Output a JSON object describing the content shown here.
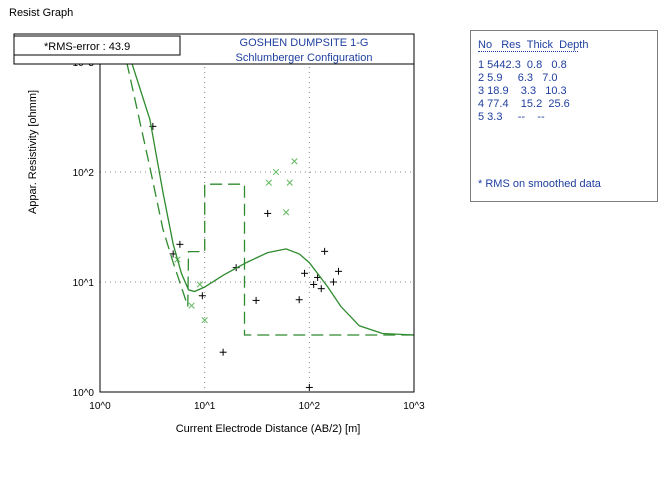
{
  "window": {
    "title": "Resist Graph"
  },
  "rms_label": "*RMS-error : 43.9",
  "layer_table": {
    "headers": [
      "No",
      "Res",
      "Thick",
      "Depth"
    ],
    "rows": [
      [
        "1",
        "5442.3",
        "0.8",
        "0.8"
      ],
      [
        "2",
        "5.9",
        "6.3",
        "7.0"
      ],
      [
        "3",
        "18.9",
        "3.3",
        "10.3"
      ],
      [
        "4",
        "77.4",
        "15.2",
        "25.6"
      ],
      [
        "5",
        "3.3",
        "--",
        "--"
      ]
    ],
    "note": "* RMS on smoothed data"
  },
  "colors": {
    "model": "#2e8b2e",
    "observed_marker": "#000000",
    "smoothed_marker": "#5fb85f",
    "title": "#1f3f9f",
    "grid": "#8a8a8a"
  },
  "chart_data": {
    "type": "scatter",
    "title": "GOSHEN DUMPSITE 1-G",
    "subtitle": "Schlumberger Configuration",
    "xlabel": "Current Electrode Distance (AB/2) [m]",
    "ylabel": "Appar. Resistivity [ohmm]",
    "x_scale": "log",
    "y_scale": "log",
    "xlim": [
      1,
      1000
    ],
    "ylim": [
      1,
      1000
    ],
    "x_ticks": [
      "10^0",
      "10^1",
      "10^2",
      "10^3"
    ],
    "y_ticks": [
      "10^0",
      "10^1",
      "10^2",
      "10^3"
    ],
    "grid": true,
    "series": [
      {
        "marker": "plus",
        "points": [
          [
            3.2,
            260
          ],
          [
            5,
            18
          ],
          [
            5.8,
            22
          ],
          [
            9.5,
            7.5
          ],
          [
            15,
            2.3
          ],
          [
            20,
            13.5
          ],
          [
            31,
            6.8
          ],
          [
            40,
            42
          ],
          [
            80,
            6.9
          ],
          [
            90,
            12
          ],
          [
            110,
            9.5
          ],
          [
            120,
            11
          ],
          [
            130,
            8.7
          ],
          [
            140,
            19
          ],
          [
            170,
            10
          ],
          [
            190,
            12.5
          ],
          [
            100,
            1.1
          ]
        ]
      },
      {
        "marker": "cross",
        "points": [
          [
            5.5,
            16
          ],
          [
            7.5,
            6.1
          ],
          [
            9,
            9.5
          ],
          [
            10,
            4.5
          ],
          [
            41,
            80
          ],
          [
            48,
            100
          ],
          [
            60,
            43
          ],
          [
            65,
            80
          ],
          [
            72,
            125
          ]
        ]
      },
      {
        "style": "solid",
        "points": [
          [
            2,
            1000
          ],
          [
            3,
            300
          ],
          [
            4,
            65
          ],
          [
            5,
            22
          ],
          [
            6,
            12
          ],
          [
            7,
            8.5
          ],
          [
            8,
            8.2
          ],
          [
            10,
            9
          ],
          [
            15,
            11.5
          ],
          [
            25,
            15
          ],
          [
            40,
            18.5
          ],
          [
            60,
            20
          ],
          [
            80,
            18
          ],
          [
            100,
            15
          ],
          [
            150,
            9
          ],
          [
            200,
            6
          ],
          [
            300,
            4
          ],
          [
            500,
            3.4
          ],
          [
            1000,
            3.3
          ]
        ]
      },
      {
        "style": "dashed",
        "step": true,
        "points": [
          [
            1.8,
            1000
          ],
          [
            3,
            110
          ],
          [
            4,
            30
          ],
          [
            5,
            15
          ],
          [
            6,
            9
          ],
          [
            6.9,
            6
          ],
          [
            7,
            18.9
          ],
          [
            10,
            18.9
          ],
          [
            10,
            77.4
          ],
          [
            24,
            77.4
          ],
          [
            24,
            3.3
          ],
          [
            1000,
            3.3
          ]
        ]
      }
    ]
  }
}
